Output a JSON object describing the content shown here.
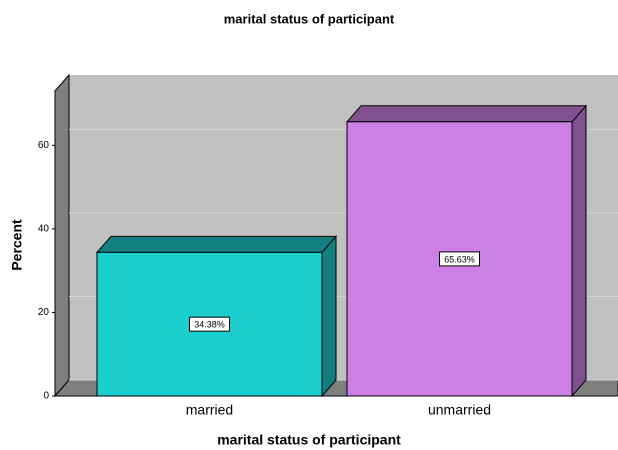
{
  "chart_data": {
    "type": "bar3d",
    "title": "marital status of participant",
    "x_label": "marital status of participant",
    "y_label": "Percent",
    "categories": [
      "married",
      "unmarried"
    ],
    "values": [
      34.38,
      65.63
    ],
    "value_labels": [
      "34.38%",
      "65.63%"
    ],
    "colors": [
      "#1ccfcf",
      "#cc80e6"
    ],
    "side_colors": [
      "#127f80",
      "#80508f"
    ],
    "ylim": [
      0,
      73
    ],
    "yticks": [
      0,
      20,
      40,
      60
    ],
    "grid": true
  }
}
